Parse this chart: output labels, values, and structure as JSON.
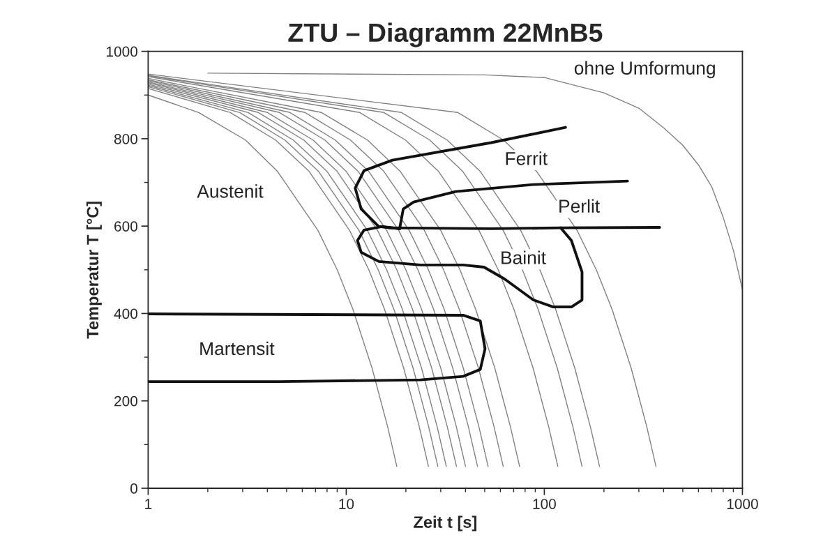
{
  "chart_data": {
    "type": "line",
    "title": "ZTU – Diagramm 22MnB5",
    "xlabel": "Zeit t [s]",
    "ylabel": "Temperatur T [°C]",
    "log": "x",
    "xlim": [
      1,
      1000
    ],
    "xticks": [
      1,
      10,
      100,
      1000
    ],
    "ylim": [
      0,
      1000
    ],
    "yticks": [
      0,
      200,
      400,
      600,
      800,
      1000
    ],
    "grid": false,
    "legend": false,
    "marker": "none",
    "line_style": "solid",
    "series": [
      {
        "color": "#808080",
        "x": [
          1,
          1.8,
          3.1,
          4.5,
          7.2,
          9,
          10.8,
          13.5,
          16.2,
          18
        ],
        "values": [
          900,
          860,
          797,
          725,
          590,
          500,
          410,
          275,
          140,
          50
        ]
      },
      {
        "color": "#808080",
        "x": [
          1,
          2.6,
          4.4,
          6.5,
          10.4,
          13,
          15.6,
          19.5,
          23.4,
          26
        ],
        "values": [
          915,
          860,
          797,
          725,
          590,
          500,
          410,
          275,
          140,
          50
        ]
      },
      {
        "color": "#808080",
        "x": [
          1,
          2.9,
          4.9,
          7.25,
          11.6,
          14.5,
          17.4,
          21.75,
          26.1,
          29
        ],
        "values": [
          919,
          860,
          797,
          725,
          590,
          500,
          410,
          275,
          140,
          50
        ]
      },
      {
        "color": "#808080",
        "x": [
          1,
          3.2,
          5.4,
          8,
          12.8,
          16,
          19.2,
          24,
          28.8,
          32
        ],
        "values": [
          922,
          860,
          797,
          725,
          590,
          500,
          410,
          275,
          140,
          50
        ]
      },
      {
        "color": "#808080",
        "x": [
          1,
          3.6,
          6.1,
          9,
          14.4,
          18,
          21.6,
          27,
          32.4,
          36
        ],
        "values": [
          925,
          860,
          797,
          725,
          590,
          500,
          410,
          275,
          140,
          50
        ]
      },
      {
        "color": "#808080",
        "x": [
          1,
          4,
          6.8,
          10,
          16,
          20,
          24,
          30,
          36,
          40
        ],
        "values": [
          928,
          860,
          797,
          725,
          590,
          500,
          410,
          275,
          140,
          50
        ]
      },
      {
        "color": "#808080",
        "x": [
          1,
          4.6,
          7.8,
          11.5,
          18.4,
          23,
          27.6,
          34.5,
          41.4,
          46
        ],
        "values": [
          930,
          860,
          797,
          725,
          590,
          500,
          410,
          275,
          140,
          50
        ]
      },
      {
        "color": "#808080",
        "x": [
          1,
          5.2,
          8.8,
          13,
          20.8,
          26,
          31.2,
          39,
          46.8,
          52
        ],
        "values": [
          933,
          860,
          797,
          725,
          590,
          500,
          410,
          275,
          140,
          50
        ]
      },
      {
        "color": "#808080",
        "x": [
          1,
          6.2,
          10.5,
          15.5,
          24.8,
          31,
          37.2,
          46.5,
          55.8,
          62
        ],
        "values": [
          935,
          860,
          797,
          725,
          590,
          500,
          410,
          275,
          140,
          50
        ]
      },
      {
        "color": "#808080",
        "x": [
          1,
          7.5,
          12.8,
          18.75,
          30,
          37.5,
          45,
          56.25,
          67.5,
          75
        ],
        "values": [
          938,
          860,
          797,
          725,
          590,
          500,
          410,
          275,
          140,
          50
        ]
      },
      {
        "color": "#808080",
        "x": [
          1,
          11.7,
          19.9,
          29.25,
          46.8,
          58.5,
          70.2,
          87.75,
          105.3,
          117
        ],
        "values": [
          942,
          860,
          797,
          725,
          590,
          500,
          410,
          275,
          140,
          50
        ]
      },
      {
        "color": "#808080",
        "x": [
          1,
          15.5,
          26.4,
          38.75,
          62,
          77.5,
          93,
          116.25,
          139.5,
          155
        ],
        "values": [
          944,
          860,
          797,
          725,
          590,
          500,
          410,
          275,
          140,
          50
        ]
      },
      {
        "color": "#808080",
        "x": [
          1,
          19,
          32.3,
          47.5,
          76,
          95,
          114,
          142.5,
          171,
          190
        ],
        "values": [
          945,
          860,
          797,
          725,
          590,
          500,
          410,
          275,
          140,
          50
        ]
      },
      {
        "color": "#808080",
        "x": [
          1,
          36.6,
          62.2,
          91.5,
          146.4,
          183,
          219.6,
          274.5,
          329.4,
          366
        ],
        "values": [
          948,
          860,
          797,
          725,
          590,
          500,
          410,
          275,
          140,
          50
        ]
      },
      {
        "color": "#808080",
        "x": [
          2,
          50,
          100,
          200,
          300,
          400,
          500,
          600,
          700,
          800,
          900,
          1000
        ],
        "values": [
          950,
          946,
          940,
          905,
          870,
          825,
          785,
          740,
          690,
          620,
          545,
          455
        ]
      },
      {
        "color": "#111111",
        "x": [
          128,
          54,
          17.1,
          12.3,
          11.1,
          11.9,
          14.6,
          18.6
        ],
        "values": [
          826,
          791,
          751,
          727,
          687,
          639,
          599,
          594
        ]
      },
      {
        "color": "#111111",
        "x": [
          18.6,
          19.4,
          21.9,
          35.7,
          87.7,
          263
        ],
        "values": [
          594,
          639,
          655,
          679,
          695,
          703
        ]
      },
      {
        "color": "#111111",
        "x": [
          16.4,
          54,
          121,
          382
        ],
        "values": [
          596,
          594,
          596,
          597
        ]
      },
      {
        "color": "#111111",
        "x": [
          121,
          137,
          155,
          155,
          137,
          111,
          88,
          63,
          49.6,
          38.9,
          23.7,
          14.6,
          11.9,
          11.4,
          12.3,
          15.1,
          18.6
        ],
        "values": [
          596,
          567,
          495,
          431,
          415,
          415,
          431,
          479,
          506,
          511,
          511,
          519,
          540,
          567,
          591,
          599,
          594
        ]
      },
      {
        "color": "#111111",
        "x": [
          1,
          38.9,
          47.5,
          50.2,
          47.5,
          38.9,
          23.7,
          4.6,
          1
        ],
        "values": [
          399,
          396,
          383,
          319,
          272,
          256,
          248,
          244,
          244
        ]
      }
    ],
    "annotations": [
      "ohne Umformung",
      "Ferrit",
      "Perlit",
      "Bainit",
      "Austenit",
      "Martensit"
    ]
  }
}
